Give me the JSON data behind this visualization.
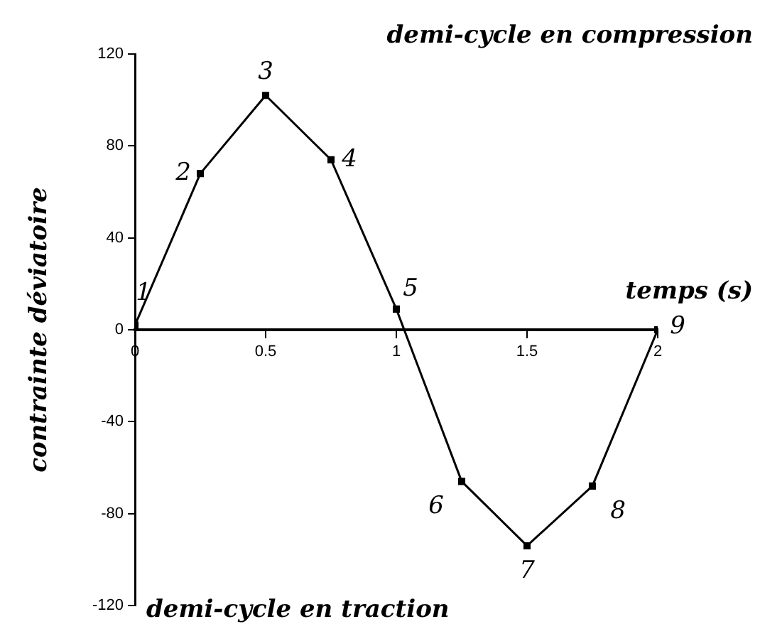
{
  "chart_data": {
    "type": "line",
    "title": "demi-cycle en compression",
    "xlabel": "temps (s)",
    "ylabel": "contrainte déviatoire",
    "x": [
      0,
      0.25,
      0.5,
      0.75,
      1,
      1.25,
      1.5,
      1.75,
      2
    ],
    "series": [
      {
        "color": "#000000",
        "values": [
          2,
          68,
          102,
          74,
          9,
          -66,
          -94,
          -68,
          0
        ]
      }
    ],
    "xlim": [
      0,
      2
    ],
    "xticks": [
      0,
      0.5,
      1,
      1.5,
      2
    ],
    "ylim": [
      -120,
      120
    ],
    "yticks": [
      -120,
      -80,
      -40,
      0,
      40,
      80,
      120
    ],
    "annotations": [
      {
        "text": "1",
        "x": 0,
        "y": 2
      },
      {
        "text": "2",
        "x": 0.25,
        "y": 68
      },
      {
        "text": "3",
        "x": 0.5,
        "y": 102
      },
      {
        "text": "4",
        "x": 0.75,
        "y": 74
      },
      {
        "text": "5",
        "x": 1,
        "y": 9
      },
      {
        "text": "6",
        "x": 1.25,
        "y": -66
      },
      {
        "text": "7",
        "x": 1.5,
        "y": -94
      },
      {
        "text": "8",
        "x": 1.75,
        "y": -68
      },
      {
        "text": "9",
        "x": 2,
        "y": 0
      },
      "demi-cycle en traction"
    ],
    "grid": false,
    "legend": false,
    "marker": "square",
    "line_style": "solid"
  }
}
